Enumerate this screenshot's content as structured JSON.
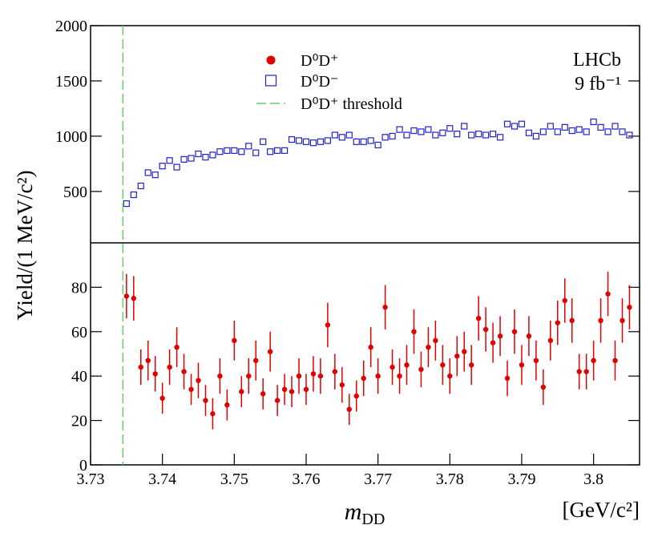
{
  "chart_data": [
    {
      "type": "scatter",
      "xlim": [
        3.73,
        3.8064
      ],
      "ylim": [
        35,
        2000
      ],
      "yticks": [
        500,
        1000,
        1500,
        2000
      ],
      "x": [
        3.735,
        3.736,
        3.737,
        3.738,
        3.739,
        3.74,
        3.741,
        3.742,
        3.743,
        3.744,
        3.745,
        3.746,
        3.747,
        3.748,
        3.749,
        3.75,
        3.751,
        3.752,
        3.753,
        3.754,
        3.755,
        3.756,
        3.757,
        3.758,
        3.759,
        3.76,
        3.761,
        3.762,
        3.763,
        3.764,
        3.765,
        3.766,
        3.767,
        3.768,
        3.769,
        3.77,
        3.771,
        3.772,
        3.773,
        3.774,
        3.775,
        3.776,
        3.777,
        3.778,
        3.779,
        3.78,
        3.781,
        3.782,
        3.783,
        3.784,
        3.785,
        3.786,
        3.787,
        3.788,
        3.789,
        3.79,
        3.791,
        3.792,
        3.793,
        3.794,
        3.795,
        3.796,
        3.797,
        3.798,
        3.799,
        3.8,
        3.801,
        3.802,
        3.803,
        3.804,
        3.805
      ],
      "series": [
        {
          "name": "D⁰D⁻",
          "color": "#2020d0",
          "values": [
            390,
            470,
            550,
            670,
            650,
            730,
            780,
            720,
            790,
            800,
            840,
            810,
            830,
            860,
            870,
            870,
            860,
            910,
            850,
            950,
            860,
            870,
            870,
            970,
            960,
            950,
            940,
            950,
            960,
            1010,
            990,
            1010,
            950,
            950,
            960,
            920,
            990,
            1000,
            1060,
            1010,
            1050,
            1040,
            1060,
            1010,
            1030,
            1070,
            1020,
            1090,
            1010,
            1020,
            1010,
            1020,
            990,
            1110,
            1090,
            1110,
            1030,
            1000,
            1040,
            1090,
            1040,
            1080,
            1050,
            1060,
            1040,
            1130,
            1080,
            1040,
            1090,
            1040,
            1010
          ]
        }
      ],
      "threshold": {
        "name": "D⁰D⁺ threshold",
        "x": 3.7345,
        "color": "#66cc66"
      },
      "annotations": [
        "LHCb",
        "9 fb⁻¹"
      ]
    },
    {
      "type": "scatter",
      "xlim": [
        3.73,
        3.8064
      ],
      "ylim": [
        0,
        100
      ],
      "yticks": [
        0,
        20,
        40,
        60,
        80
      ],
      "xticks": [
        3.73,
        3.74,
        3.75,
        3.76,
        3.77,
        3.78,
        3.79,
        3.8
      ],
      "x_label": {
        "main": "m",
        "sub": "DD"
      },
      "x_unit": "[GeV/c²]",
      "y_label": "Yield/(1 MeV/c²)",
      "x": [
        3.735,
        3.736,
        3.737,
        3.738,
        3.739,
        3.74,
        3.741,
        3.742,
        3.743,
        3.744,
        3.745,
        3.746,
        3.747,
        3.748,
        3.749,
        3.75,
        3.751,
        3.752,
        3.753,
        3.754,
        3.755,
        3.756,
        3.757,
        3.758,
        3.759,
        3.76,
        3.761,
        3.762,
        3.763,
        3.764,
        3.765,
        3.766,
        3.767,
        3.768,
        3.769,
        3.77,
        3.771,
        3.772,
        3.773,
        3.774,
        3.775,
        3.776,
        3.777,
        3.778,
        3.779,
        3.78,
        3.781,
        3.782,
        3.783,
        3.784,
        3.785,
        3.786,
        3.787,
        3.788,
        3.789,
        3.79,
        3.791,
        3.792,
        3.793,
        3.794,
        3.795,
        3.796,
        3.797,
        3.798,
        3.799,
        3.8,
        3.801,
        3.802,
        3.803,
        3.804,
        3.805
      ],
      "series": [
        {
          "name": "D⁰D⁺",
          "color": "#e00000",
          "values": [
            76,
            75,
            44,
            47,
            41,
            30,
            44,
            53,
            42,
            34,
            38,
            29,
            23,
            40,
            27,
            56,
            33,
            40,
            47,
            32,
            51,
            29,
            34,
            33,
            40,
            34,
            41,
            40,
            63,
            42,
            36,
            25,
            31,
            39,
            53,
            40,
            71,
            44,
            40,
            45,
            60,
            43,
            53,
            56,
            45,
            40,
            49,
            51,
            45,
            66,
            61,
            55,
            58,
            39,
            60,
            45,
            58,
            47,
            35,
            56,
            64,
            74,
            65,
            42,
            42,
            47,
            65,
            77,
            47,
            65,
            71
          ],
          "errors": [
            10,
            10,
            8,
            9,
            8,
            7,
            8,
            9,
            8,
            7,
            8,
            7,
            7,
            8,
            7,
            9,
            7,
            8,
            9,
            7,
            9,
            7,
            7,
            7,
            8,
            7,
            8,
            8,
            10,
            8,
            8,
            7,
            7,
            8,
            9,
            8,
            10,
            8,
            8,
            9,
            10,
            8,
            9,
            9,
            9,
            8,
            9,
            9,
            9,
            10,
            10,
            9,
            9,
            8,
            10,
            9,
            9,
            9,
            8,
            9,
            10,
            10,
            10,
            8,
            8,
            9,
            10,
            10,
            9,
            10,
            10
          ]
        }
      ]
    }
  ]
}
